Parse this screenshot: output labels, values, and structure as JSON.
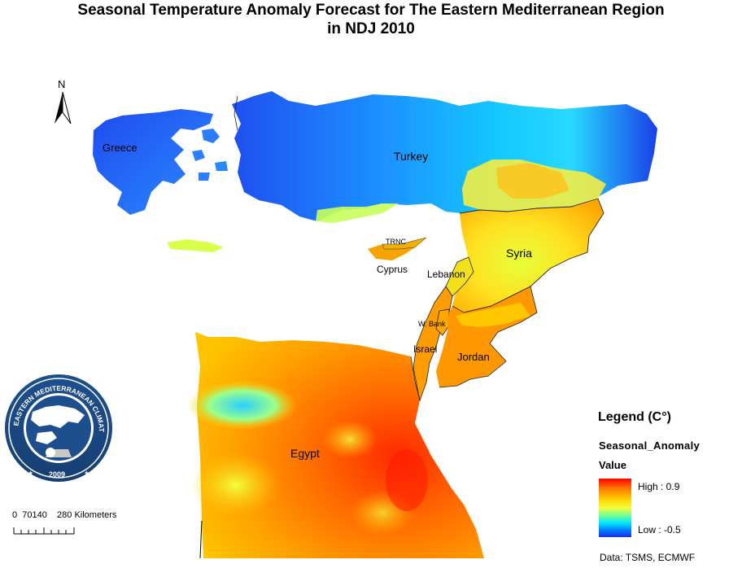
{
  "title": {
    "line1": "Seasonal Temperature Anomaly Forecast for  The Eastern Mediterranean Region",
    "line2": "in NDJ 2010"
  },
  "north_arrow": {
    "label": "N"
  },
  "countries": [
    {
      "name": "Greece"
    },
    {
      "name": "Turkey"
    },
    {
      "name": "TRNC"
    },
    {
      "name": "Cyprus"
    },
    {
      "name": "Syria"
    },
    {
      "name": "Lebanon"
    },
    {
      "name": "W. Bank"
    },
    {
      "name": "Israel"
    },
    {
      "name": "Jordan"
    },
    {
      "name": "Egypt"
    }
  ],
  "logo": {
    "ring_text": "EASTERN MEDITERRANEAN CLIMATE CENTRE",
    "year": "2009"
  },
  "legend": {
    "title": "Legend (C°)",
    "field": "Seasonal_Anomaly",
    "value_label": "Value",
    "high": "High : 0.9",
    "low": "Low : -0.5",
    "high_value": 0.9,
    "low_value": -0.5,
    "colors": [
      "#ff0000",
      "#ff7f00",
      "#ffd200",
      "#f5ff3c",
      "#00e6ff",
      "#0080ff",
      "#1a2fe8"
    ]
  },
  "scale_bar": {
    "labels": "0  70140    280 Kilometers"
  },
  "credit": "Data:  TSMS, ECMWF"
}
